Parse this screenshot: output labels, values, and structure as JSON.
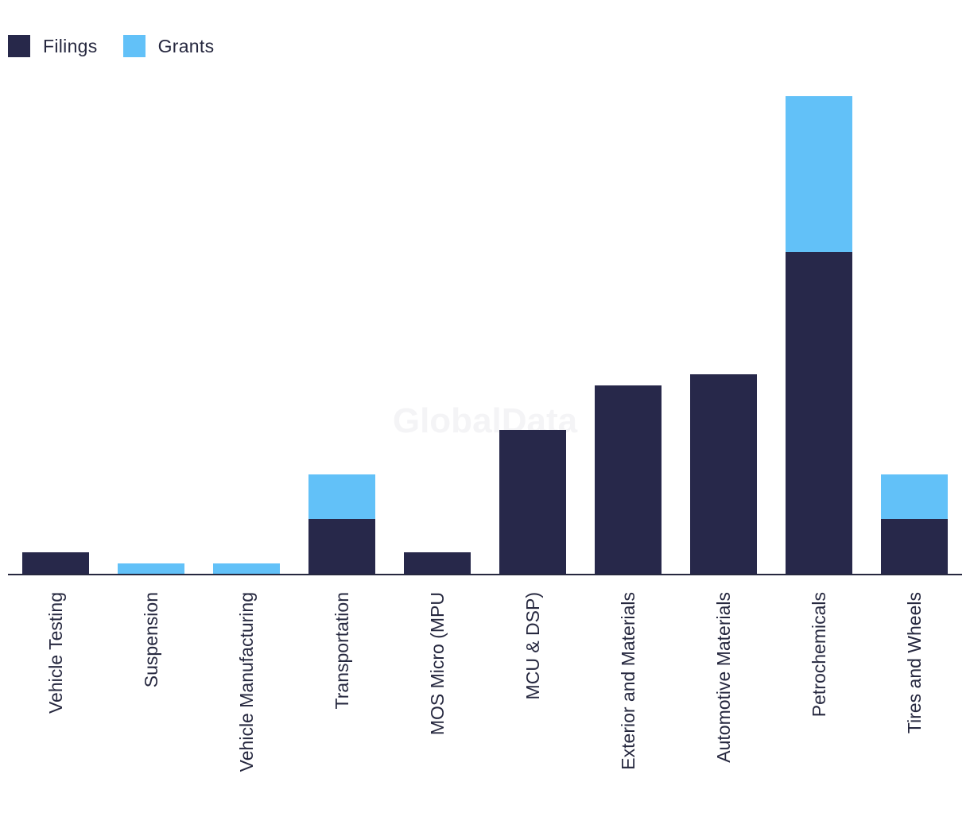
{
  "watermark": "GlobalData",
  "legend": {
    "filings_label": "Filings",
    "grants_label": "Grants"
  },
  "colors": {
    "filings": "#27284a",
    "grants": "#62c1f8",
    "axis": "#26283f",
    "text": "#26283f"
  },
  "chart_data": {
    "type": "bar",
    "stacked": true,
    "title": "",
    "xlabel": "",
    "ylabel": "",
    "ylim": [
      0,
      43
    ],
    "legend_position": "top-left",
    "grid": false,
    "categories": [
      "Vehicle Testing",
      "Suspension",
      "Vehicle Manufacturing",
      "Transportation",
      "MOS Micro (MPU",
      "MCU & DSP)",
      "Exterior and Materials",
      "Automotive Materials",
      "Petrochemicals",
      "Tires and Wheels"
    ],
    "series": [
      {
        "name": "Filings",
        "values": [
          2,
          0,
          0,
          5,
          2,
          13,
          17,
          18,
          29,
          5
        ]
      },
      {
        "name": "Grants",
        "values": [
          0,
          1,
          1,
          4,
          0,
          0,
          0,
          0,
          14,
          4
        ]
      }
    ]
  }
}
